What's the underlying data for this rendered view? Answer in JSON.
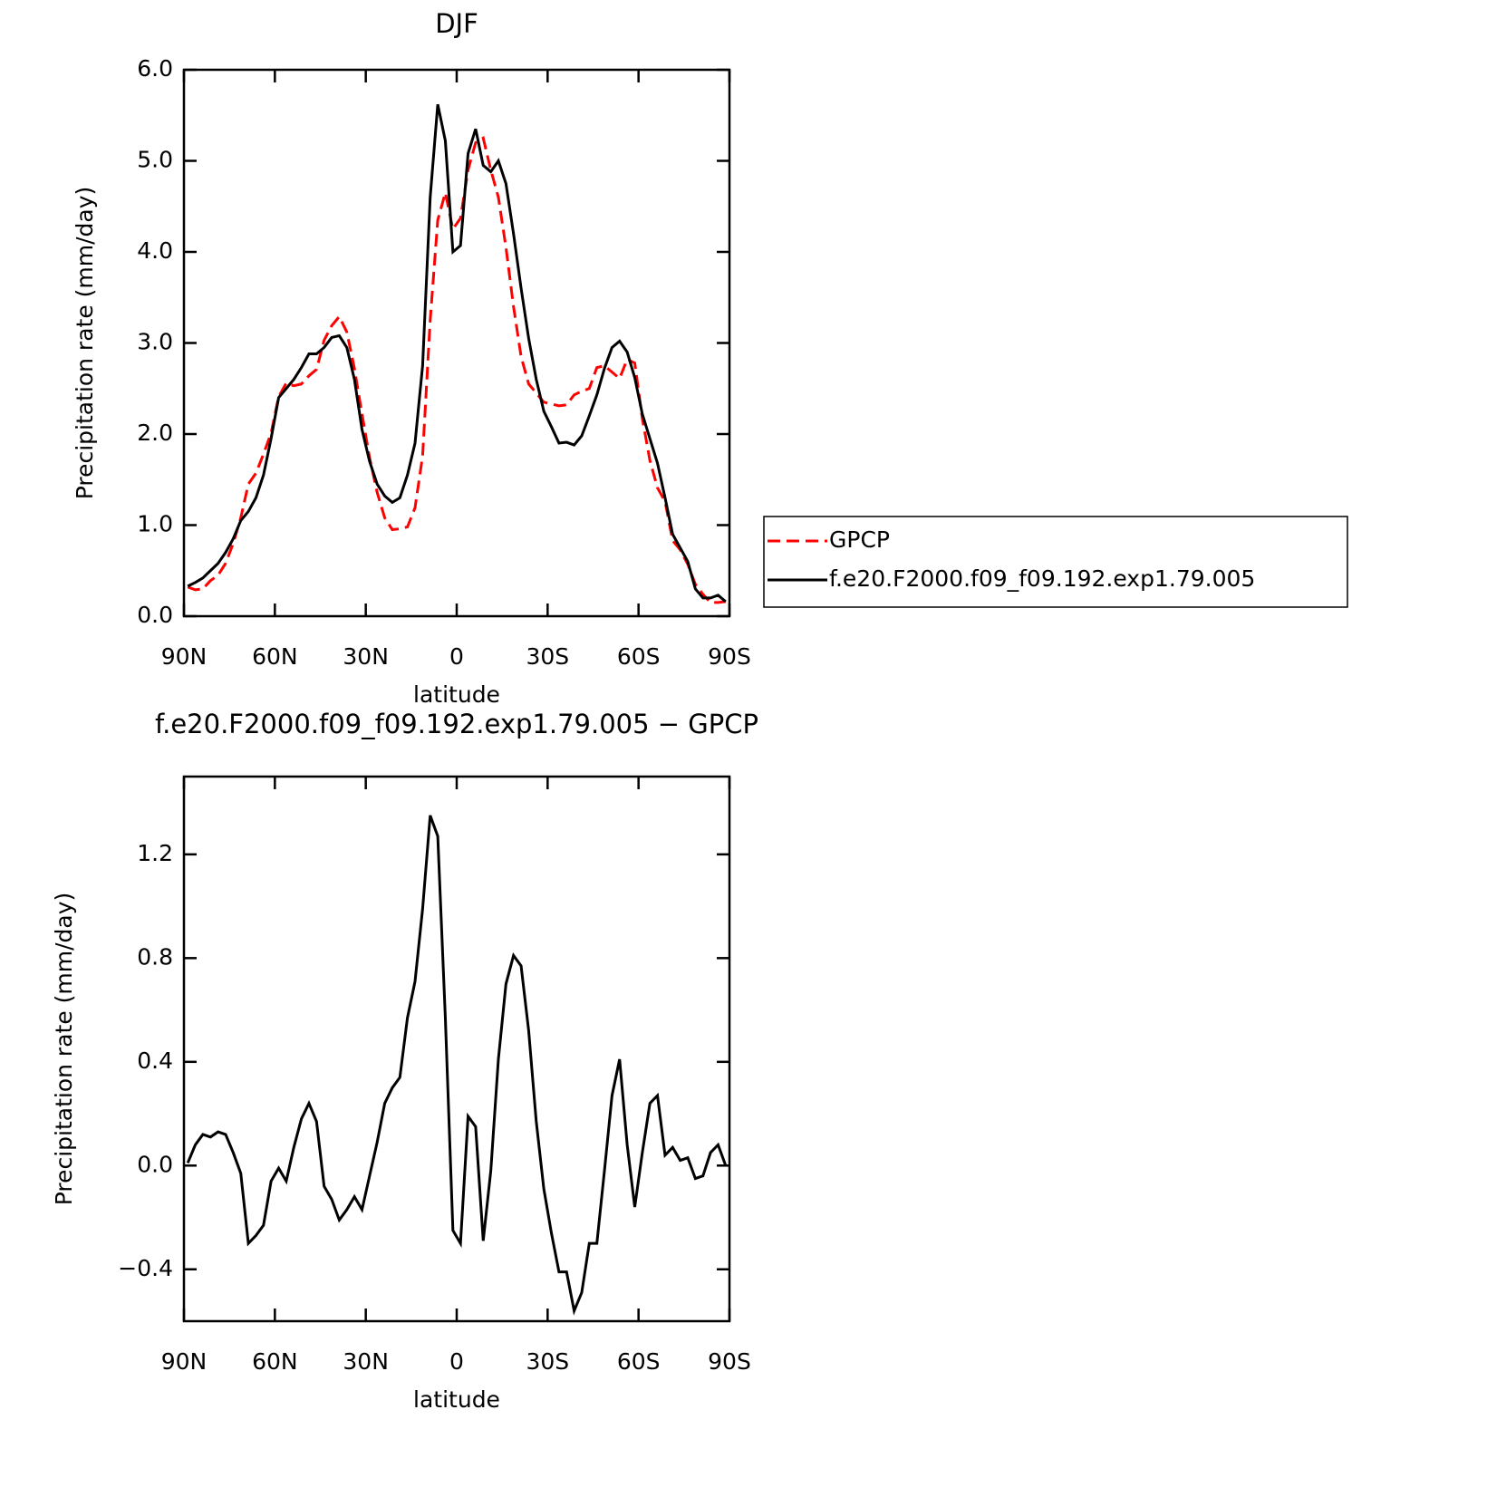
{
  "chart_data": [
    {
      "type": "line",
      "title": "DJF",
      "xlabel": "latitude",
      "ylabel": "Precipitation rate (mm/day)",
      "x": [
        88.75,
        86.25,
        83.75,
        81.25,
        78.75,
        76.25,
        73.75,
        71.25,
        68.75,
        66.25,
        63.75,
        61.25,
        58.75,
        56.25,
        53.75,
        51.25,
        48.75,
        46.25,
        43.75,
        41.25,
        38.75,
        36.25,
        33.75,
        31.25,
        28.75,
        26.25,
        23.75,
        21.25,
        18.75,
        16.25,
        13.75,
        11.25,
        8.75,
        6.25,
        3.75,
        1.25,
        -1.25,
        -3.75,
        -6.25,
        -8.75,
        -11.25,
        -13.75,
        -16.25,
        -18.75,
        -21.25,
        -23.75,
        -26.25,
        -28.75,
        -31.25,
        -33.75,
        -36.25,
        -38.75,
        -41.25,
        -43.75,
        -46.25,
        -48.75,
        -51.25,
        -53.75,
        -56.25,
        -58.75,
        -61.25,
        -63.75,
        -66.25,
        -68.75,
        -71.25,
        -73.75,
        -76.25,
        -78.75,
        -81.25,
        -83.75,
        -86.25,
        -88.75
      ],
      "series": [
        {
          "name": "GPCP",
          "color": "#ff0000",
          "linestyle": "dashed",
          "values": [
            0.32,
            0.29,
            0.3,
            0.39,
            0.45,
            0.58,
            0.8,
            1.08,
            1.45,
            1.57,
            1.78,
            2.01,
            2.41,
            2.56,
            2.53,
            2.55,
            2.64,
            2.71,
            3.03,
            3.19,
            3.29,
            3.12,
            2.72,
            2.22,
            1.74,
            1.36,
            1.08,
            0.95,
            0.96,
            0.98,
            1.19,
            1.76,
            3.25,
            4.35,
            4.65,
            4.25,
            4.37,
            4.9,
            5.2,
            5.25,
            4.9,
            4.6,
            4.05,
            3.4,
            2.85,
            2.55,
            2.45,
            2.35,
            2.33,
            2.31,
            2.32,
            2.43,
            2.47,
            2.5,
            2.73,
            2.75,
            2.68,
            2.61,
            2.82,
            2.78,
            2.17,
            1.71,
            1.41,
            1.26,
            0.83,
            0.73,
            0.57,
            0.35,
            0.24,
            0.15,
            0.15,
            0.16
          ]
        },
        {
          "name": "f.e20.F2000.f09_f09.192.exp1.79.005",
          "color": "#000000",
          "linestyle": "solid",
          "values": [
            0.33,
            0.37,
            0.42,
            0.5,
            0.58,
            0.7,
            0.85,
            1.05,
            1.15,
            1.3,
            1.55,
            1.95,
            2.4,
            2.5,
            2.6,
            2.73,
            2.88,
            2.88,
            2.95,
            3.06,
            3.08,
            2.95,
            2.6,
            2.05,
            1.7,
            1.45,
            1.32,
            1.25,
            1.3,
            1.55,
            1.9,
            2.75,
            4.6,
            5.62,
            5.22,
            4.0,
            4.07,
            5.08,
            5.35,
            4.95,
            4.88,
            5.0,
            4.75,
            4.2,
            3.6,
            3.05,
            2.6,
            2.25,
            2.08,
            1.9,
            1.91,
            1.88,
            1.98,
            2.2,
            2.43,
            2.72,
            2.95,
            3.02,
            2.9,
            2.62,
            2.22,
            1.95,
            1.68,
            1.3,
            0.9,
            0.75,
            0.6,
            0.3,
            0.2,
            0.2,
            0.23,
            0.16
          ]
        }
      ],
      "xlim": [
        90,
        -90
      ],
      "xticks": [
        {
          "value": 90,
          "label": "90N"
        },
        {
          "value": 60,
          "label": "60N"
        },
        {
          "value": 30,
          "label": "30N"
        },
        0,
        {
          "value": -30,
          "label": "30S"
        },
        {
          "value": -60,
          "label": "60S"
        },
        {
          "value": -90,
          "label": "90S"
        }
      ],
      "ylim": [
        0,
        6
      ],
      "yticks": [
        {
          "value": 0,
          "label": "0.0"
        },
        {
          "value": 1,
          "label": "1.0"
        },
        {
          "value": 2,
          "label": "2.0"
        },
        {
          "value": 3,
          "label": "3.0"
        },
        {
          "value": 4,
          "label": "4.0"
        },
        {
          "value": 5,
          "label": "5.0"
        },
        {
          "value": 6,
          "label": "6.0"
        }
      ],
      "legend": "right"
    },
    {
      "type": "line",
      "title": "f.e20.F2000.f09_f09.192.exp1.79.005 − GPCP",
      "xlabel": "latitude",
      "ylabel": "Precipitation rate (mm/day)",
      "x": [
        88.75,
        86.25,
        83.75,
        81.25,
        78.75,
        76.25,
        73.75,
        71.25,
        68.75,
        66.25,
        63.75,
        61.25,
        58.75,
        56.25,
        53.75,
        51.25,
        48.75,
        46.25,
        43.75,
        41.25,
        38.75,
        36.25,
        33.75,
        31.25,
        28.75,
        26.25,
        23.75,
        21.25,
        18.75,
        16.25,
        13.75,
        11.25,
        8.75,
        6.25,
        3.75,
        1.25,
        -1.25,
        -3.75,
        -6.25,
        -8.75,
        -11.25,
        -13.75,
        -16.25,
        -18.75,
        -21.25,
        -23.75,
        -26.25,
        -28.75,
        -31.25,
        -33.75,
        -36.25,
        -38.75,
        -41.25,
        -43.75,
        -46.25,
        -48.75,
        -51.25,
        -53.75,
        -56.25,
        -58.75,
        -61.25,
        -63.75,
        -66.25,
        -68.75,
        -71.25,
        -73.75,
        -76.25,
        -78.75,
        -81.25,
        -83.75,
        -86.25,
        -88.75
      ],
      "values": [
        0.01,
        0.08,
        0.12,
        0.11,
        0.13,
        0.12,
        0.05,
        -0.03,
        -0.3,
        -0.27,
        -0.23,
        -0.06,
        -0.01,
        -0.06,
        0.07,
        0.18,
        0.24,
        0.17,
        -0.08,
        -0.13,
        -0.21,
        -0.17,
        -0.12,
        -0.17,
        -0.04,
        0.09,
        0.24,
        0.3,
        0.34,
        0.57,
        0.71,
        0.99,
        1.35,
        1.27,
        0.57,
        -0.25,
        -0.3,
        0.19,
        0.15,
        -0.29,
        -0.02,
        0.41,
        0.7,
        0.81,
        0.77,
        0.52,
        0.17,
        -0.09,
        -0.26,
        -0.41,
        -0.41,
        -0.56,
        -0.49,
        -0.3,
        -0.3,
        -0.02,
        0.27,
        0.41,
        0.08,
        -0.16,
        0.05,
        0.24,
        0.27,
        0.04,
        0.07,
        0.02,
        0.03,
        -0.05,
        -0.04,
        0.05,
        0.08,
        0
      ],
      "color": "#000000",
      "xlim": [
        90,
        -90
      ],
      "xticks": [
        {
          "value": 90,
          "label": "90N"
        },
        {
          "value": 60,
          "label": "60N"
        },
        {
          "value": 30,
          "label": "30N"
        },
        0,
        {
          "value": -30,
          "label": "30S"
        },
        {
          "value": -60,
          "label": "60S"
        },
        {
          "value": -90,
          "label": "90S"
        }
      ],
      "ylim": [
        -0.6,
        1.5
      ],
      "yticks": [
        {
          "value": -0.4,
          "label": "−0.4"
        },
        {
          "value": 0,
          "label": "0.0"
        },
        {
          "value": 0.4,
          "label": "0.4"
        },
        {
          "value": 0.8,
          "label": "0.8"
        },
        {
          "value": 1.2,
          "label": "1.2"
        }
      ]
    }
  ]
}
